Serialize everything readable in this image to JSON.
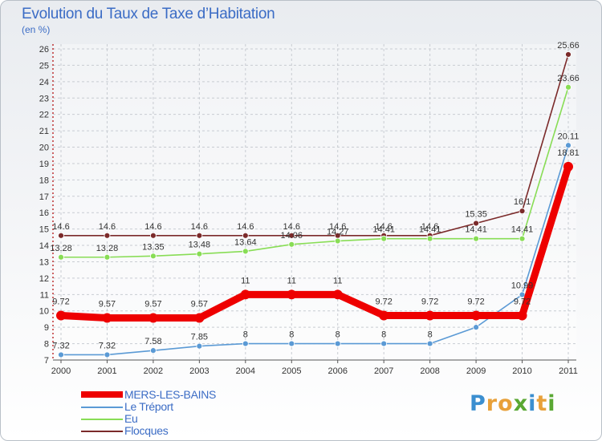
{
  "header": {
    "title": "Evolution du Taux de Taxe d’Habitation",
    "subtitle": "(en %)"
  },
  "logo": {
    "letters": [
      "P",
      "r",
      "o",
      "x",
      "i",
      "t",
      "i"
    ],
    "colors": [
      "#3b8fd0",
      "#e8a13a",
      "#e8a13a",
      "#5aa833",
      "#3b8fd0",
      "#e8a13a",
      "#5aa833"
    ]
  },
  "chart_data": {
    "type": "line",
    "title": "Evolution du Taux de Taxe d’Habitation",
    "ylabel": "(en %)",
    "xlabel": "",
    "x": [
      "2000",
      "2001",
      "2002",
      "2003",
      "2004",
      "2005",
      "2006",
      "2007",
      "2008",
      "2009",
      "2010",
      "2011"
    ],
    "ylim": [
      7,
      26
    ],
    "yticks": [
      "7",
      "8",
      "9",
      "10",
      "11",
      "12",
      "13",
      "14",
      "15",
      "16",
      "17",
      "18",
      "19",
      "20",
      "21",
      "22",
      "23",
      "24",
      "25",
      "26"
    ],
    "grid": true,
    "legend_position": "bottom-left",
    "series": [
      {
        "name": "Flocques",
        "color": "#7b2a2a",
        "emphasis": false,
        "values": [
          14.6,
          14.6,
          14.6,
          14.6,
          14.6,
          14.6,
          14.6,
          14.6,
          14.6,
          15.35,
          16.1,
          25.66
        ],
        "labels": [
          "14.6",
          "14.6",
          "14.6",
          "14.6",
          "14.6",
          "14.6",
          "14.6",
          "14.6",
          "14.6",
          "15.35",
          "16.1",
          "25.66"
        ]
      },
      {
        "name": "Eu",
        "color": "#88dd55",
        "emphasis": false,
        "values": [
          13.28,
          13.28,
          13.35,
          13.48,
          13.64,
          14.06,
          14.27,
          14.41,
          14.41,
          14.41,
          14.41,
          23.66
        ],
        "labels": [
          "13.28",
          "13.28",
          "13.35",
          "13.48",
          "13.64",
          "14.06",
          "14.27",
          "14.41",
          "14.41",
          "14.41",
          "14.41",
          "23.66"
        ]
      },
      {
        "name": "Le Tréport",
        "color": "#5b9ad5",
        "emphasis": false,
        "values": [
          7.32,
          7.32,
          7.58,
          7.85,
          8,
          8,
          8,
          8,
          8,
          9,
          10.99,
          20.11
        ],
        "labels": [
          "7.32",
          "7.32",
          "7.58",
          "7.85",
          "8",
          "8",
          "8",
          "8",
          "8",
          "",
          "10.99",
          "20.11"
        ]
      },
      {
        "name": "MERS-LES-BAINS",
        "color": "#ee0000",
        "emphasis": true,
        "values": [
          9.72,
          9.57,
          9.57,
          9.57,
          11,
          11,
          11,
          9.72,
          9.72,
          9.72,
          9.72,
          18.81
        ],
        "labels": [
          "9.72",
          "9.57",
          "9.57",
          "9.57",
          "11",
          "11",
          "11",
          "9.72",
          "9.72",
          "9.72",
          "9.72",
          "18.81"
        ]
      }
    ],
    "legend": [
      "MERS-LES-BAINS",
      "Le Tréport",
      "Eu",
      "Flocques"
    ]
  }
}
